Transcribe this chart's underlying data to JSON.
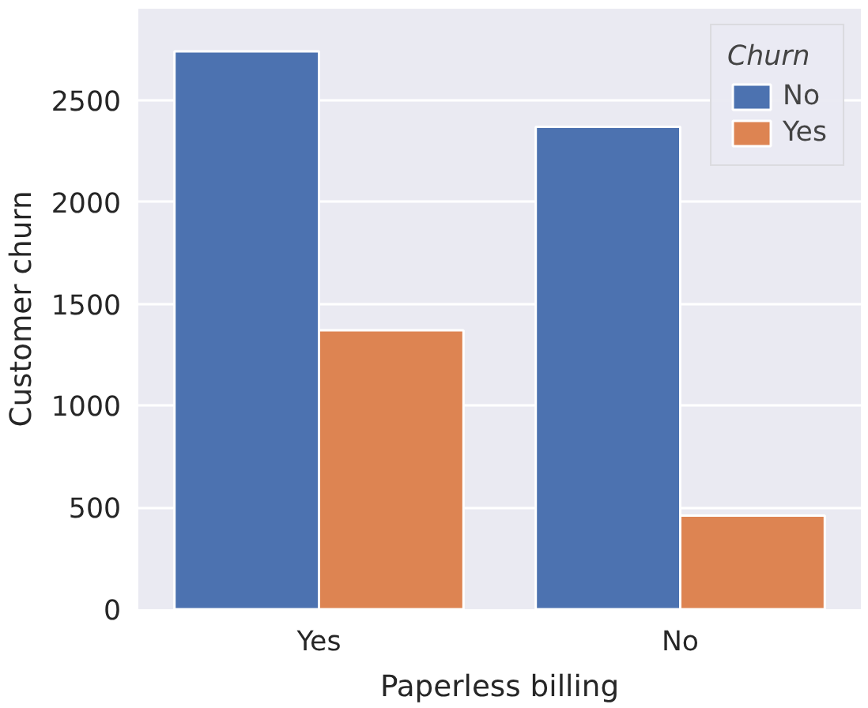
{
  "chart_data": {
    "type": "bar",
    "xlabel": "Paperless billing",
    "ylabel": "Customer churn",
    "legend_title": "Churn",
    "categories": [
      "Yes",
      "No"
    ],
    "series": [
      {
        "name": "No",
        "color": "#4c72b0",
        "values": [
          2740,
          2370
        ]
      },
      {
        "name": "Yes",
        "color": "#dd8452",
        "values": [
          1370,
          460
        ]
      }
    ],
    "ylim": [
      0,
      2950
    ],
    "yticks": [
      0,
      500,
      1000,
      1500,
      2000,
      2500
    ],
    "grid": "y",
    "legend": "top right"
  }
}
